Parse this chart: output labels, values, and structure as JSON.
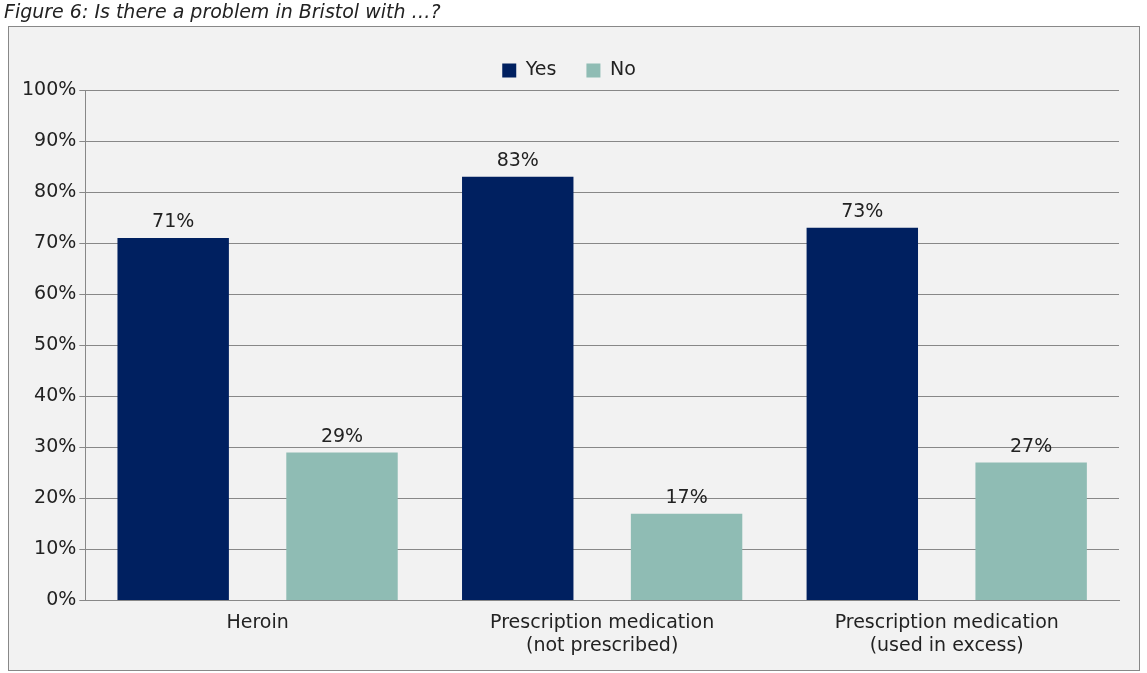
{
  "chart_data": {
    "type": "bar",
    "title": "Figure 6: Is there a problem in Bristol with …?",
    "categories": [
      "Heroin",
      "Prescription medication\n(not prescribed)",
      "Prescription medication\n(used in excess)"
    ],
    "series": [
      {
        "name": "Yes",
        "color": "#002060",
        "values": [
          71,
          83,
          73
        ],
        "value_labels": [
          "71%",
          "83%",
          "73%"
        ]
      },
      {
        "name": "No",
        "color": "#8fbcb4",
        "values": [
          29,
          17,
          27
        ],
        "value_labels": [
          "29%",
          "17%",
          "27%"
        ]
      }
    ],
    "ylim": [
      0,
      100
    ],
    "yticks": [
      {
        "value": 0,
        "label": "0%"
      },
      {
        "value": 10,
        "label": "10%"
      },
      {
        "value": 20,
        "label": "20%"
      },
      {
        "value": 30,
        "label": "30%"
      },
      {
        "value": 40,
        "label": "40%"
      },
      {
        "value": 50,
        "label": "50%"
      },
      {
        "value": 60,
        "label": "60%"
      },
      {
        "value": 70,
        "label": "70%"
      },
      {
        "value": 80,
        "label": "80%"
      },
      {
        "value": 90,
        "label": "90%"
      },
      {
        "value": 100,
        "label": "100%"
      }
    ],
    "grid": "y",
    "legend": "top"
  }
}
